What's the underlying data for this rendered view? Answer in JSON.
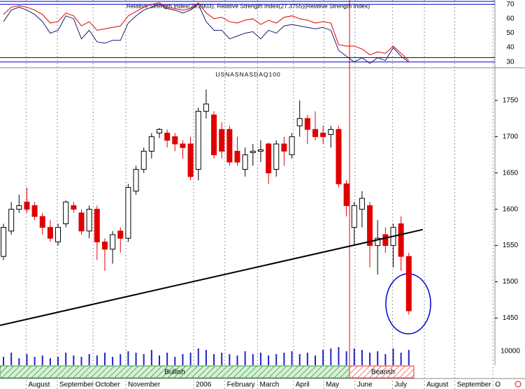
{
  "chart_data": [
    {
      "type": "line",
      "title": "Relative Strength Index(28.2903), Relative Strength Index(27.3755)(Relative Strength Index)",
      "ylim": [
        26,
        73
      ],
      "yticks": [
        70,
        60,
        50,
        40,
        30
      ],
      "levels": [
        70,
        33,
        30
      ],
      "series": [
        {
          "color": "#1a1a6e",
          "values": [
            58,
            66,
            68,
            66,
            63,
            58,
            50,
            52,
            62,
            60,
            46,
            52,
            44,
            43,
            45,
            45,
            57,
            62,
            66,
            68,
            70,
            67,
            66,
            64,
            66,
            70,
            58,
            52,
            52,
            46,
            48,
            50,
            51,
            46,
            52,
            50,
            55,
            56,
            55,
            54,
            53,
            54,
            52,
            38,
            34,
            30,
            33,
            29,
            33,
            31,
            40,
            34,
            30
          ]
        },
        {
          "color": "#e00000",
          "values": [
            63,
            68,
            69,
            68,
            66,
            63,
            57,
            58,
            64,
            62,
            55,
            58,
            52,
            53,
            54,
            55,
            62,
            65,
            68,
            70,
            71,
            68,
            67,
            66,
            67,
            71,
            64,
            60,
            61,
            58,
            57,
            59,
            60,
            56,
            59,
            57,
            61,
            62,
            60,
            59,
            57,
            58,
            57,
            42,
            41,
            41,
            39,
            35,
            37,
            36,
            41,
            36,
            31
          ]
        }
      ]
    },
    {
      "type": "candlestick",
      "title": "USNASNASDAQ100",
      "ylim": [
        1385,
        1795
      ],
      "yticks": [
        1750,
        1700,
        1650,
        1600,
        1550,
        1500,
        1450
      ],
      "up_color": "#ffffff",
      "down_color": "#e00000",
      "categories": [
        null,
        null,
        null,
        null,
        null,
        null,
        null,
        null,
        null,
        null,
        null,
        null,
        null,
        null,
        null,
        null,
        null,
        null,
        null,
        null,
        null,
        null,
        null,
        null,
        null,
        null,
        null,
        null,
        null,
        null,
        null,
        null,
        null,
        null,
        null,
        null,
        null,
        null,
        null,
        null,
        null,
        null,
        null,
        null,
        null,
        null,
        null,
        null,
        null,
        null,
        null,
        null,
        null
      ],
      "open": [
        1535,
        1570,
        1600,
        1610,
        1605,
        1590,
        1575,
        1555,
        1580,
        1605,
        1595,
        1570,
        1600,
        1555,
        1545,
        1570,
        1560,
        1625,
        1655,
        1680,
        1705,
        1705,
        1700,
        1690,
        1690,
        1655,
        1735,
        1730,
        1710,
        1710,
        1680,
        1655,
        1678,
        1680,
        1690,
        1655,
        1690,
        1675,
        1715,
        1725,
        1710,
        1705,
        1703,
        1710,
        1635,
        1575,
        1600,
        1605,
        1550,
        1565,
        1550,
        1580,
        1535
      ],
      "high": [
        1580,
        1610,
        1620,
        1630,
        1610,
        1595,
        1585,
        1580,
        1612,
        1610,
        1600,
        1605,
        1605,
        1560,
        1570,
        1575,
        1635,
        1660,
        1685,
        1705,
        1712,
        1710,
        1705,
        1695,
        1700,
        1740,
        1765,
        1735,
        1720,
        1715,
        1700,
        1685,
        1690,
        1695,
        1692,
        1695,
        1700,
        1705,
        1750,
        1730,
        1735,
        1715,
        1715,
        1715,
        1640,
        1610,
        1625,
        1610,
        1585,
        1575,
        1580,
        1590,
        1540
      ],
      "low": [
        1530,
        1565,
        1595,
        1595,
        1585,
        1565,
        1555,
        1550,
        1575,
        1595,
        1565,
        1560,
        1530,
        1515,
        1525,
        1540,
        1555,
        1620,
        1650,
        1670,
        1698,
        1685,
        1680,
        1670,
        1640,
        1640,
        1725,
        1670,
        1670,
        1660,
        1660,
        1645,
        1660,
        1665,
        1635,
        1645,
        1660,
        1670,
        1700,
        1690,
        1695,
        1690,
        1685,
        1630,
        1590,
        1550,
        1575,
        1520,
        1510,
        1540,
        1520,
        1515,
        1455
      ],
      "close": [
        1575,
        1600,
        1605,
        1600,
        1590,
        1575,
        1560,
        1575,
        1610,
        1600,
        1570,
        1600,
        1555,
        1545,
        1565,
        1560,
        1630,
        1655,
        1680,
        1700,
        1710,
        1695,
        1690,
        1685,
        1645,
        1735,
        1745,
        1675,
        1680,
        1665,
        1665,
        1675,
        1680,
        1682,
        1650,
        1690,
        1680,
        1700,
        1725,
        1710,
        1700,
        1700,
        1710,
        1635,
        1605,
        1605,
        1615,
        1550,
        1560,
        1550,
        1575,
        1535,
        1460
      ],
      "trendline": [
        [
          -0.45,
          1440
        ],
        [
          53.8,
          1572
        ]
      ],
      "xticks": [
        {
          "value": 2.9,
          "label": "August"
        },
        {
          "value": 6.9,
          "label": "September"
        },
        {
          "value": 11.5,
          "label": "October"
        },
        {
          "value": 15.7,
          "label": "November"
        },
        {
          "value": 24.4,
          "label": "2006"
        },
        {
          "value": 28.4,
          "label": "February"
        },
        {
          "value": 32.6,
          "label": "March"
        },
        {
          "value": 37.2,
          "label": "April"
        },
        {
          "value": 41.1,
          "label": "May"
        },
        {
          "value": 45.1,
          "label": "June"
        },
        {
          "value": 49.9,
          "label": "July"
        },
        {
          "value": 54,
          "label": "August"
        },
        {
          "value": 57.9,
          "label": "September"
        },
        {
          "value": 62.8,
          "label": "O"
        }
      ],
      "annotations": [
        "Bullish",
        "Bearish"
      ]
    },
    {
      "type": "volume",
      "color": "#2222cc",
      "ylim": [
        0,
        20000
      ],
      "yticks": [
        10000
      ],
      "values": [
        6000,
        9000,
        5000,
        8000,
        6000,
        7000,
        5000,
        6000,
        9000,
        7000,
        6000,
        8000,
        7000,
        9000,
        6000,
        8000,
        10000,
        9000,
        8000,
        11000,
        7000,
        9000,
        6000,
        8000,
        9000,
        12000,
        11000,
        8000,
        9000,
        8000,
        7000,
        10000,
        8000,
        9000,
        7000,
        8000,
        9000,
        10000,
        8000,
        9000,
        7000,
        11000,
        12000,
        13000,
        10000,
        12000,
        11000,
        9000,
        10000,
        8000,
        12000,
        9000,
        11000
      ]
    }
  ]
}
